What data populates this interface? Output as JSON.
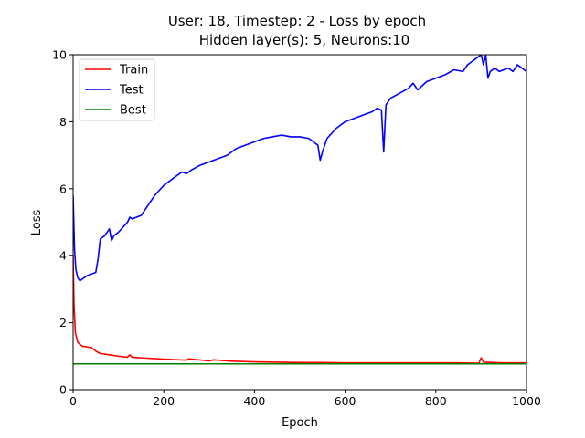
{
  "chart_data": {
    "type": "line",
    "title": "User: 18, Timestep: 2 - Loss by epoch",
    "subtitle": "Hidden layer(s): 5, Neurons:10",
    "xlabel": "Epoch",
    "ylabel": "Loss",
    "xlim": [
      0,
      1000
    ],
    "ylim": [
      0,
      10
    ],
    "x_ticks": [
      0,
      200,
      400,
      600,
      800,
      1000
    ],
    "y_ticks": [
      0,
      2,
      4,
      6,
      8,
      10
    ],
    "grid": false,
    "legend_position": "top-left",
    "series": [
      {
        "name": "Train",
        "color": "#ff0000",
        "x": [
          0,
          2,
          5,
          10,
          15,
          20,
          40,
          50,
          60,
          80,
          100,
          120,
          125,
          130,
          150,
          200,
          250,
          255,
          300,
          310,
          350,
          400,
          450,
          500,
          550,
          600,
          650,
          700,
          750,
          800,
          850,
          895,
          900,
          905,
          950,
          1000
        ],
        "y": [
          4.0,
          2.5,
          1.7,
          1.42,
          1.35,
          1.3,
          1.26,
          1.15,
          1.08,
          1.04,
          1.0,
          0.97,
          1.04,
          0.97,
          0.95,
          0.91,
          0.88,
          0.92,
          0.86,
          0.89,
          0.85,
          0.83,
          0.82,
          0.81,
          0.81,
          0.8,
          0.8,
          0.8,
          0.8,
          0.8,
          0.8,
          0.79,
          0.95,
          0.82,
          0.8,
          0.8
        ]
      },
      {
        "name": "Test",
        "color": "#0000ff",
        "x": [
          0,
          3,
          6,
          10,
          15,
          20,
          30,
          40,
          50,
          55,
          60,
          70,
          80,
          85,
          90,
          100,
          110,
          120,
          125,
          130,
          140,
          150,
          160,
          180,
          200,
          220,
          240,
          250,
          260,
          280,
          300,
          310,
          320,
          340,
          360,
          380,
          400,
          420,
          440,
          460,
          480,
          500,
          520,
          530,
          540,
          545,
          550,
          560,
          580,
          600,
          620,
          640,
          660,
          670,
          680,
          685,
          690,
          700,
          720,
          740,
          750,
          760,
          780,
          800,
          820,
          840,
          860,
          870,
          880,
          890,
          900,
          905,
          910,
          915,
          920,
          930,
          940,
          950,
          960,
          970,
          980,
          990,
          1000
        ],
        "y": [
          5.8,
          4.2,
          3.6,
          3.35,
          3.25,
          3.3,
          3.4,
          3.45,
          3.5,
          3.9,
          4.5,
          4.6,
          4.8,
          4.45,
          4.6,
          4.7,
          4.85,
          5.0,
          5.15,
          5.1,
          5.15,
          5.2,
          5.4,
          5.8,
          6.1,
          6.3,
          6.5,
          6.45,
          6.55,
          6.7,
          6.8,
          6.85,
          6.9,
          7.0,
          7.2,
          7.3,
          7.4,
          7.5,
          7.55,
          7.6,
          7.55,
          7.55,
          7.5,
          7.4,
          7.3,
          6.85,
          7.1,
          7.5,
          7.8,
          8.0,
          8.1,
          8.2,
          8.3,
          8.4,
          8.35,
          7.1,
          8.5,
          8.7,
          8.85,
          9.0,
          9.15,
          8.95,
          9.2,
          9.3,
          9.4,
          9.55,
          9.5,
          9.7,
          9.8,
          9.9,
          10.1,
          9.7,
          10.0,
          9.3,
          9.5,
          9.6,
          9.5,
          9.55,
          9.6,
          9.5,
          9.7,
          9.6,
          9.5
        ]
      },
      {
        "name": "Best",
        "color": "#008000",
        "x": [
          0,
          1000
        ],
        "y": [
          0.77,
          0.77
        ]
      }
    ]
  }
}
